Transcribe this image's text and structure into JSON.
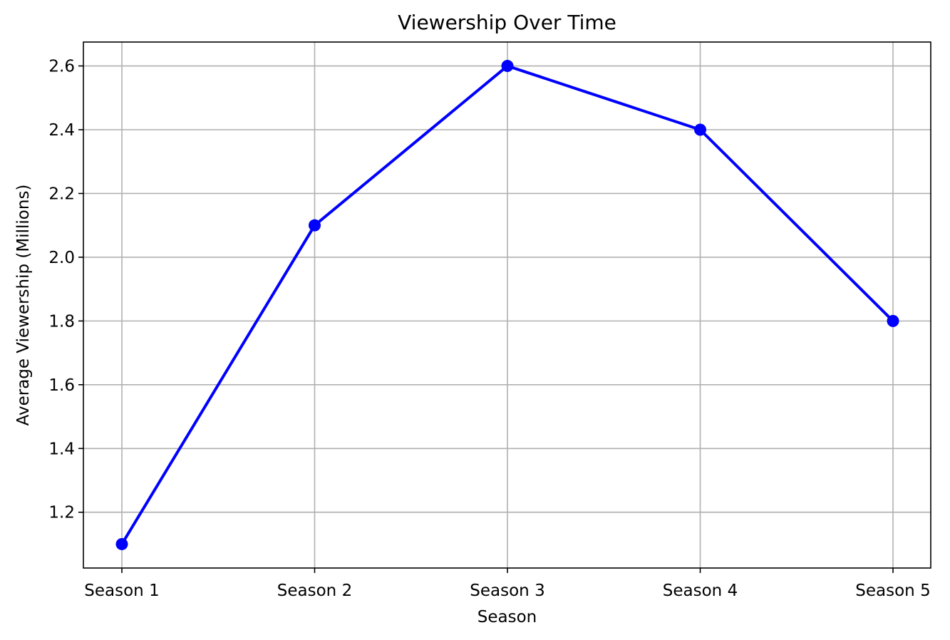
{
  "chart_data": {
    "type": "line",
    "title": "Viewership Over Time",
    "xlabel": "Season",
    "ylabel": "Average Viewership (Millions)",
    "categories": [
      "Season 1",
      "Season 2",
      "Season 3",
      "Season 4",
      "Season 5"
    ],
    "series": [
      {
        "values": [
          1.1,
          2.1,
          2.6,
          2.4,
          1.8
        ],
        "color": "#0000ff",
        "marker": "circle"
      }
    ],
    "ylim": [
      1.025,
      2.675
    ],
    "yticks": [
      1.2,
      1.4,
      1.6,
      1.8,
      2.0,
      2.2,
      2.4,
      2.6
    ],
    "ytick_labels": [
      "1.2",
      "1.4",
      "1.6",
      "1.8",
      "2.0",
      "2.2",
      "2.4",
      "2.6"
    ],
    "grid": true,
    "legend": "none"
  }
}
